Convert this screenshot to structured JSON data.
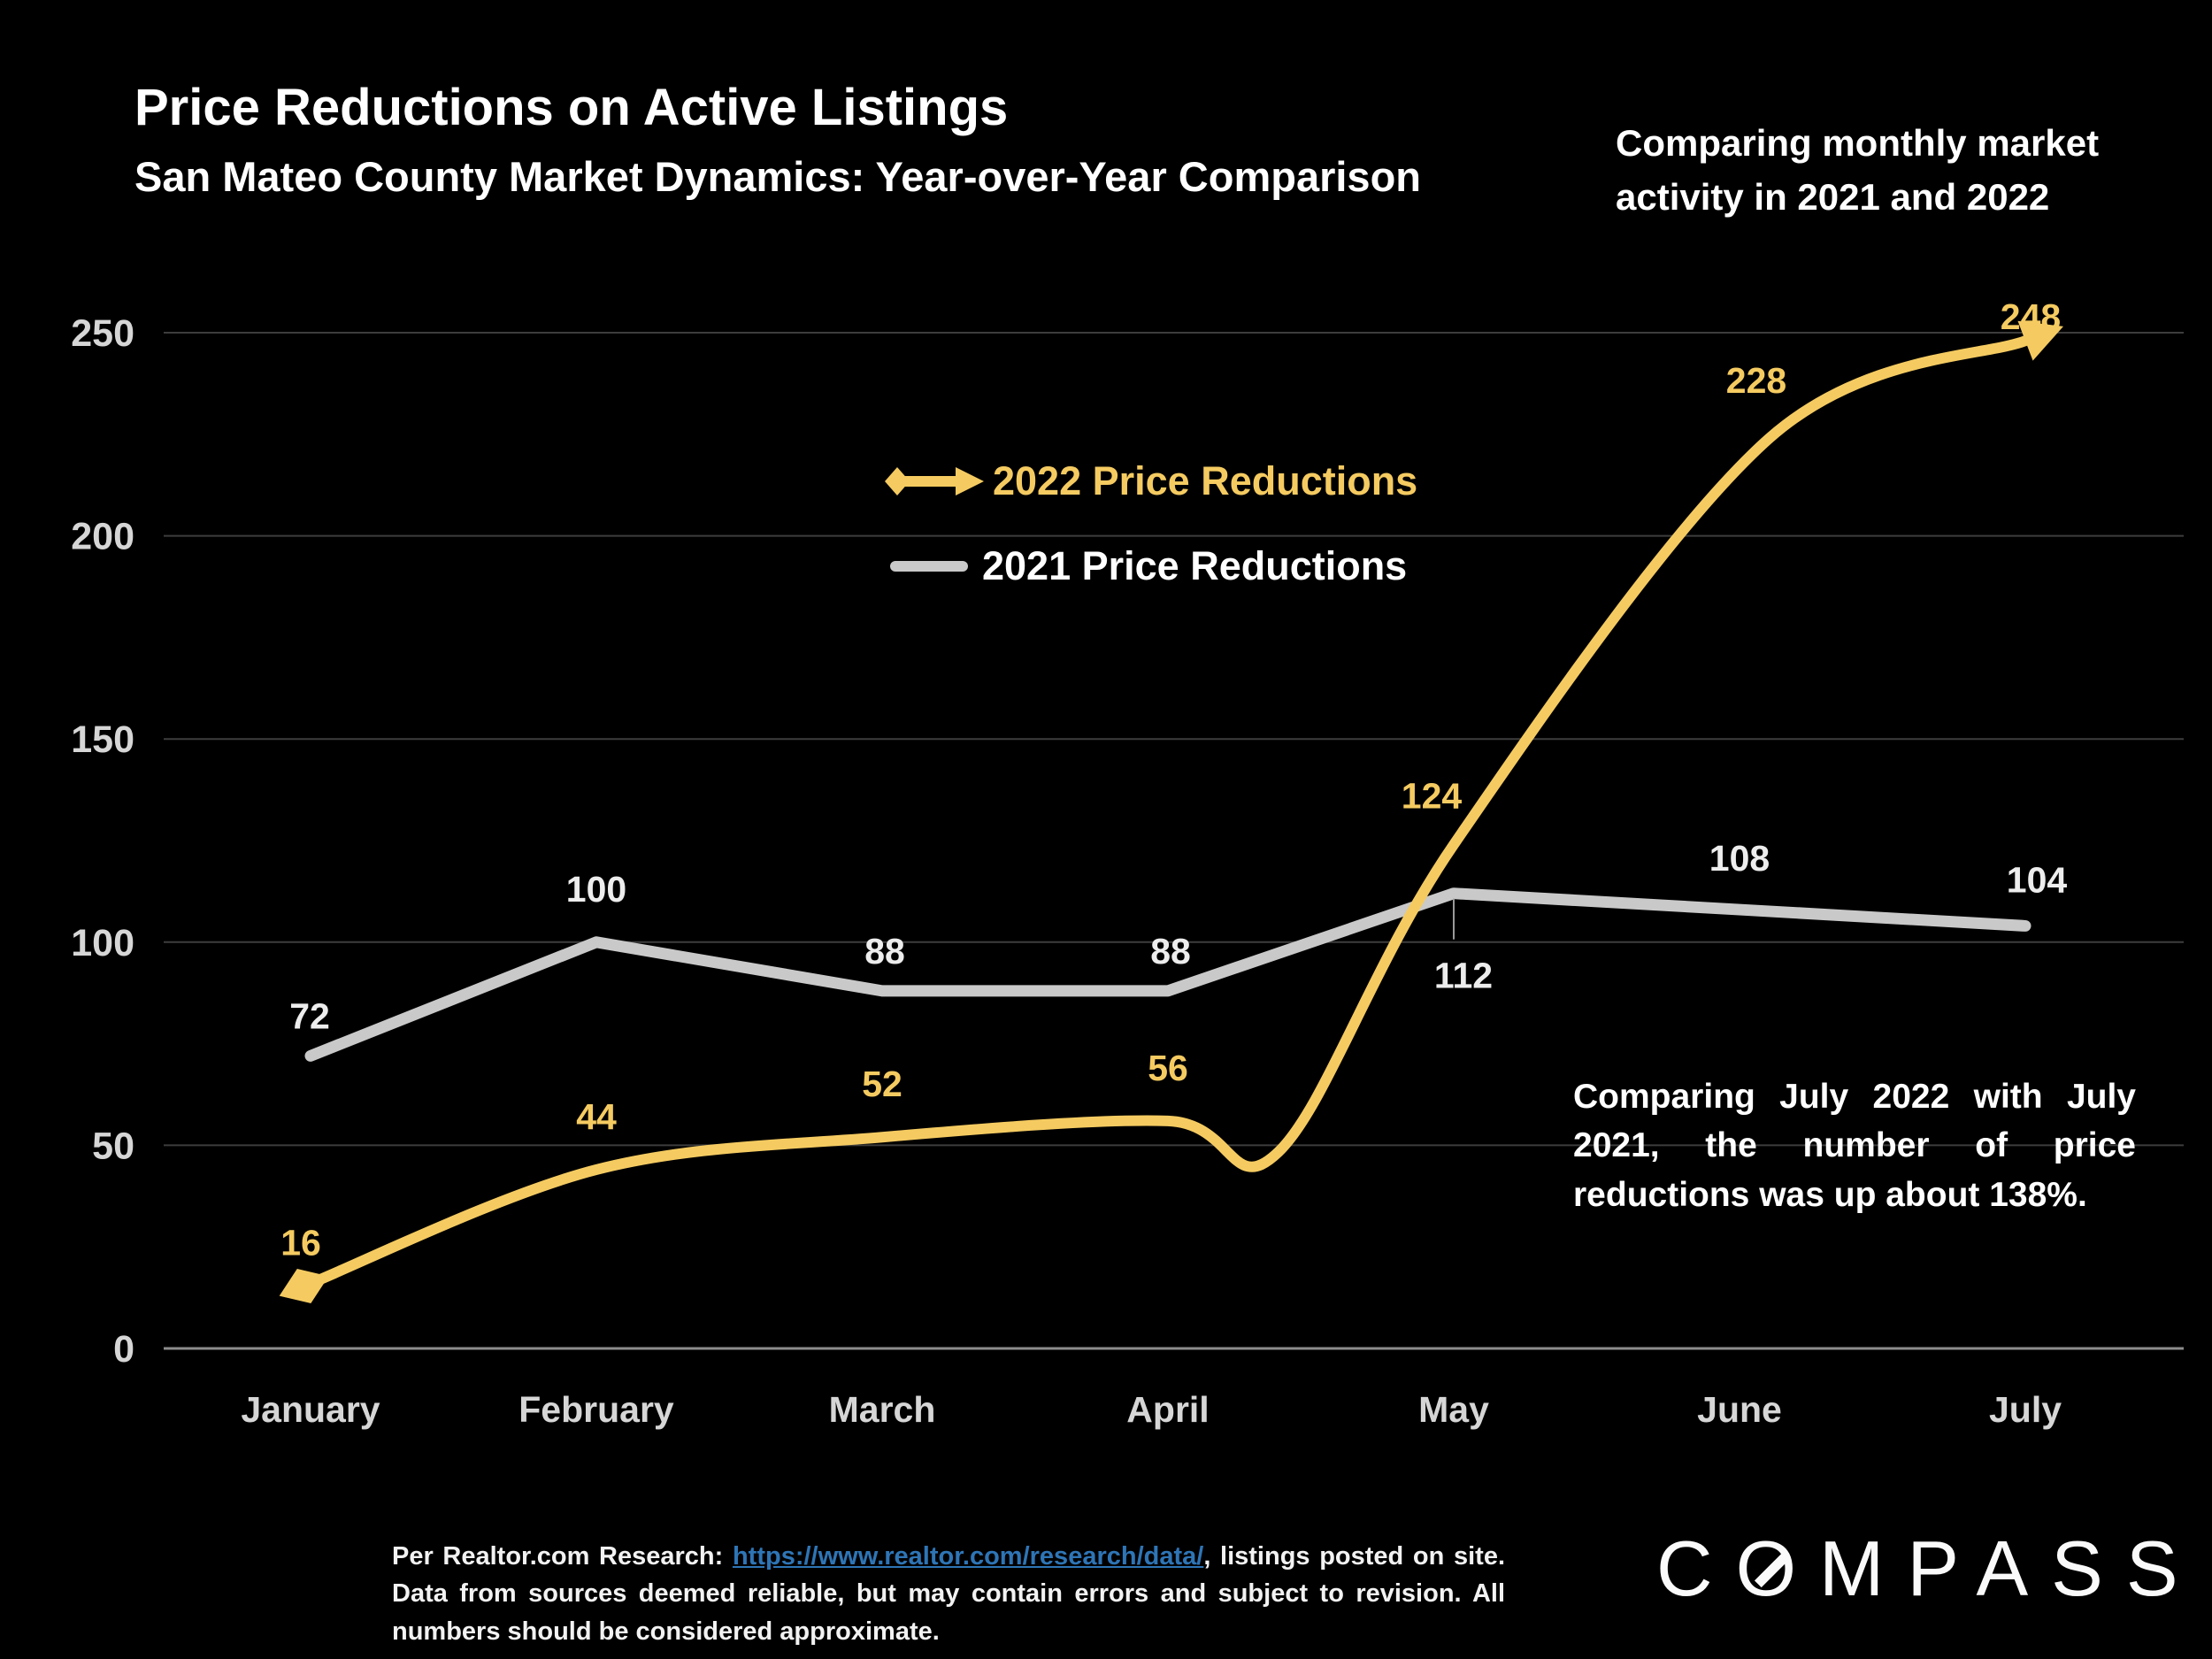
{
  "slide": {
    "title": "Price Reductions on Active Listings",
    "subtitle": "San Mateo County Market Dynamics: Year-over-Year Comparison",
    "top_note": "Comparing monthly market\nactivity in 2021 and 2022",
    "callout": "Comparing July 2022 with July 2021, the number of price reductions was up about 138%.",
    "footer": {
      "pre_link": "Per Realtor.com Research: ",
      "link_text": "https://www.realtor.com/research/data/",
      "post_link": ", listings posted on site. Data from sources deemed reliable, but may contain errors and subject to revision. All numbers should be considered approximate."
    },
    "logo": {
      "pre": "C",
      "o": "O",
      "post": "MPASS"
    }
  },
  "legend": [
    {
      "label": "2022 Price Reductions",
      "color": "#F5CB61"
    },
    {
      "label": "2021 Price Reductions",
      "color": "#FFFFFF"
    }
  ],
  "chart_data": {
    "type": "line",
    "categories": [
      "January",
      "February",
      "March",
      "April",
      "May",
      "June",
      "July"
    ],
    "series": [
      {
        "name": "2022 Price Reductions",
        "values": [
          16,
          44,
          52,
          56,
          124,
          228,
          248
        ],
        "color": "#F5CB61",
        "style": "smooth-with-diamond-start-and-arrow-end"
      },
      {
        "name": "2021 Price Reductions",
        "values": [
          72,
          100,
          88,
          88,
          112,
          108,
          104
        ],
        "color": "#C9C9C9",
        "style": "straight"
      }
    ],
    "yticks": [
      0,
      50,
      100,
      150,
      200,
      250
    ],
    "ylim": [
      0,
      250
    ],
    "grid": true,
    "legend_position": "center-upper",
    "title": "Price Reductions on Active Listings",
    "xlabel": "",
    "ylabel": ""
  },
  "colors": {
    "background": "#000000",
    "accent_yellow": "#F5CB61",
    "line_gray": "#C9C9C9",
    "label_2021": "#EDEDED",
    "axis_text": "#D6D6D6",
    "grid": "#3D3D3D",
    "baseline": "#8C8C8C",
    "leader": "#9A9A9A",
    "link_blue": "#2E75B6"
  }
}
